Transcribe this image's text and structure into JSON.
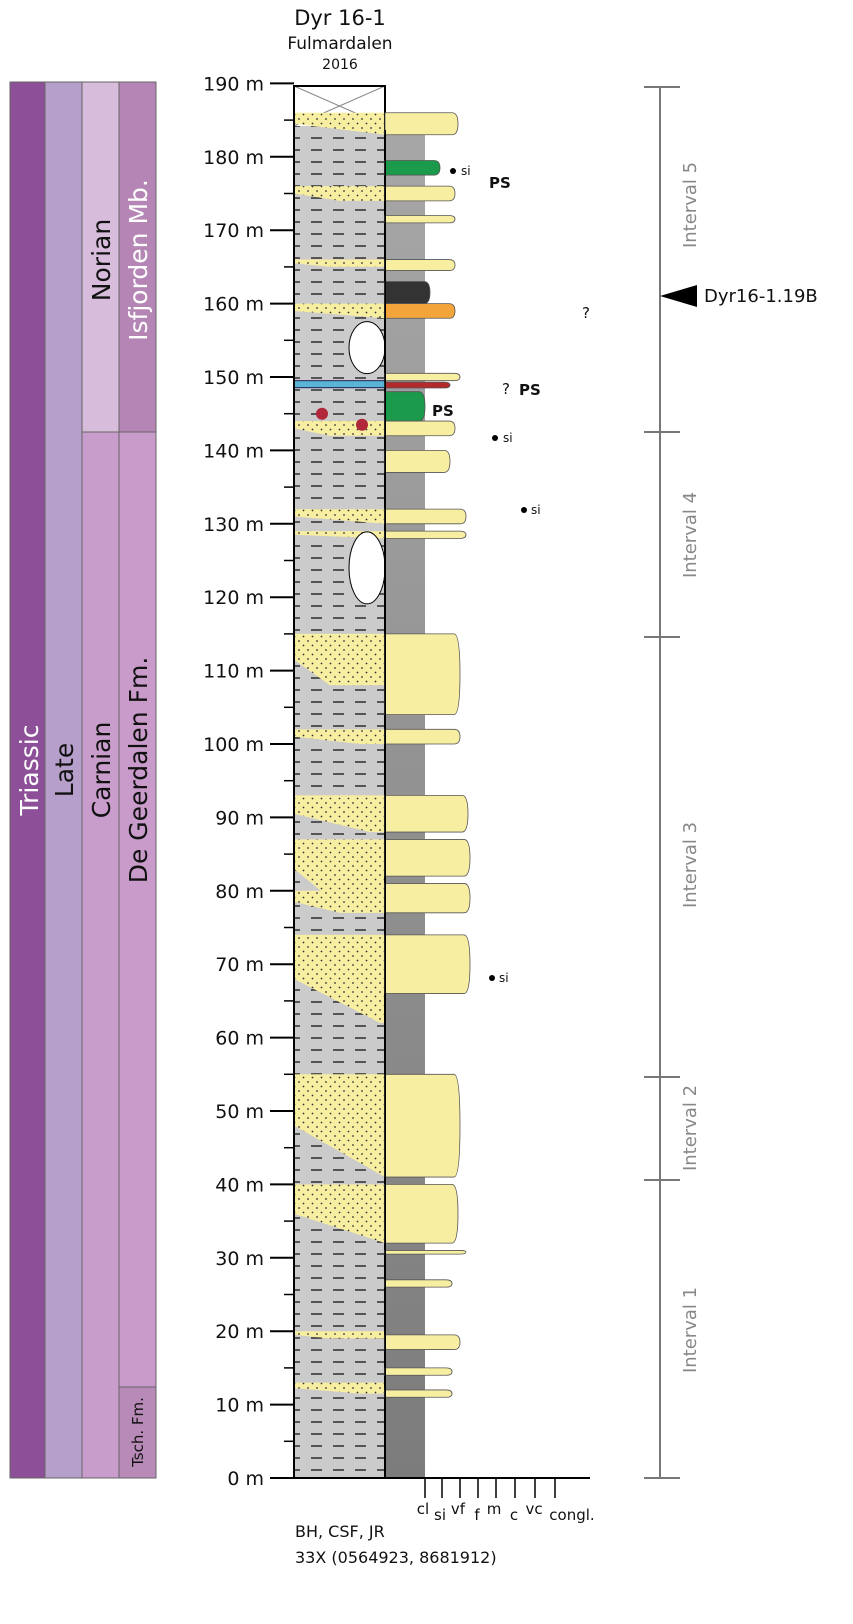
{
  "header": {
    "title": "Dyr 16-1",
    "location": "Fulmardalen",
    "year": "2016"
  },
  "depth_labels": [
    "0 m",
    "10 m",
    "20 m",
    "30 m",
    "40 m",
    "50 m",
    "60 m",
    "70 m",
    "80 m",
    "90 m",
    "100 m",
    "110 m",
    "120 m",
    "130 m",
    "140 m",
    "150 m",
    "160 m",
    "170 m",
    "180 m",
    "190 m"
  ],
  "stratigraphy": {
    "system": "Triassic",
    "series": "Late",
    "stage_upper": "Norian",
    "stage_lower": "Carnian",
    "member": "Isfjorden Mb.",
    "formation": "De Geerdalen Fm.",
    "formation_lower": "Tsch. Fm."
  },
  "intervals": [
    "Interval 1",
    "Interval 2",
    "Interval 3",
    "Interval 4",
    "Interval 5"
  ],
  "sample": "Dyr16-1.19B",
  "grain_size": [
    "cl",
    "si",
    "vf",
    "f",
    "m",
    "c",
    "vc",
    "congl."
  ],
  "annotations": {
    "ps": [
      "PS",
      "PS",
      "PS"
    ],
    "si": [
      "si",
      "si",
      "si",
      "si"
    ],
    "question": [
      "?",
      "?"
    ]
  },
  "footer": {
    "authors": "BH, CSF, JR",
    "coordinates": "33X (0564923, 8681912)"
  }
}
